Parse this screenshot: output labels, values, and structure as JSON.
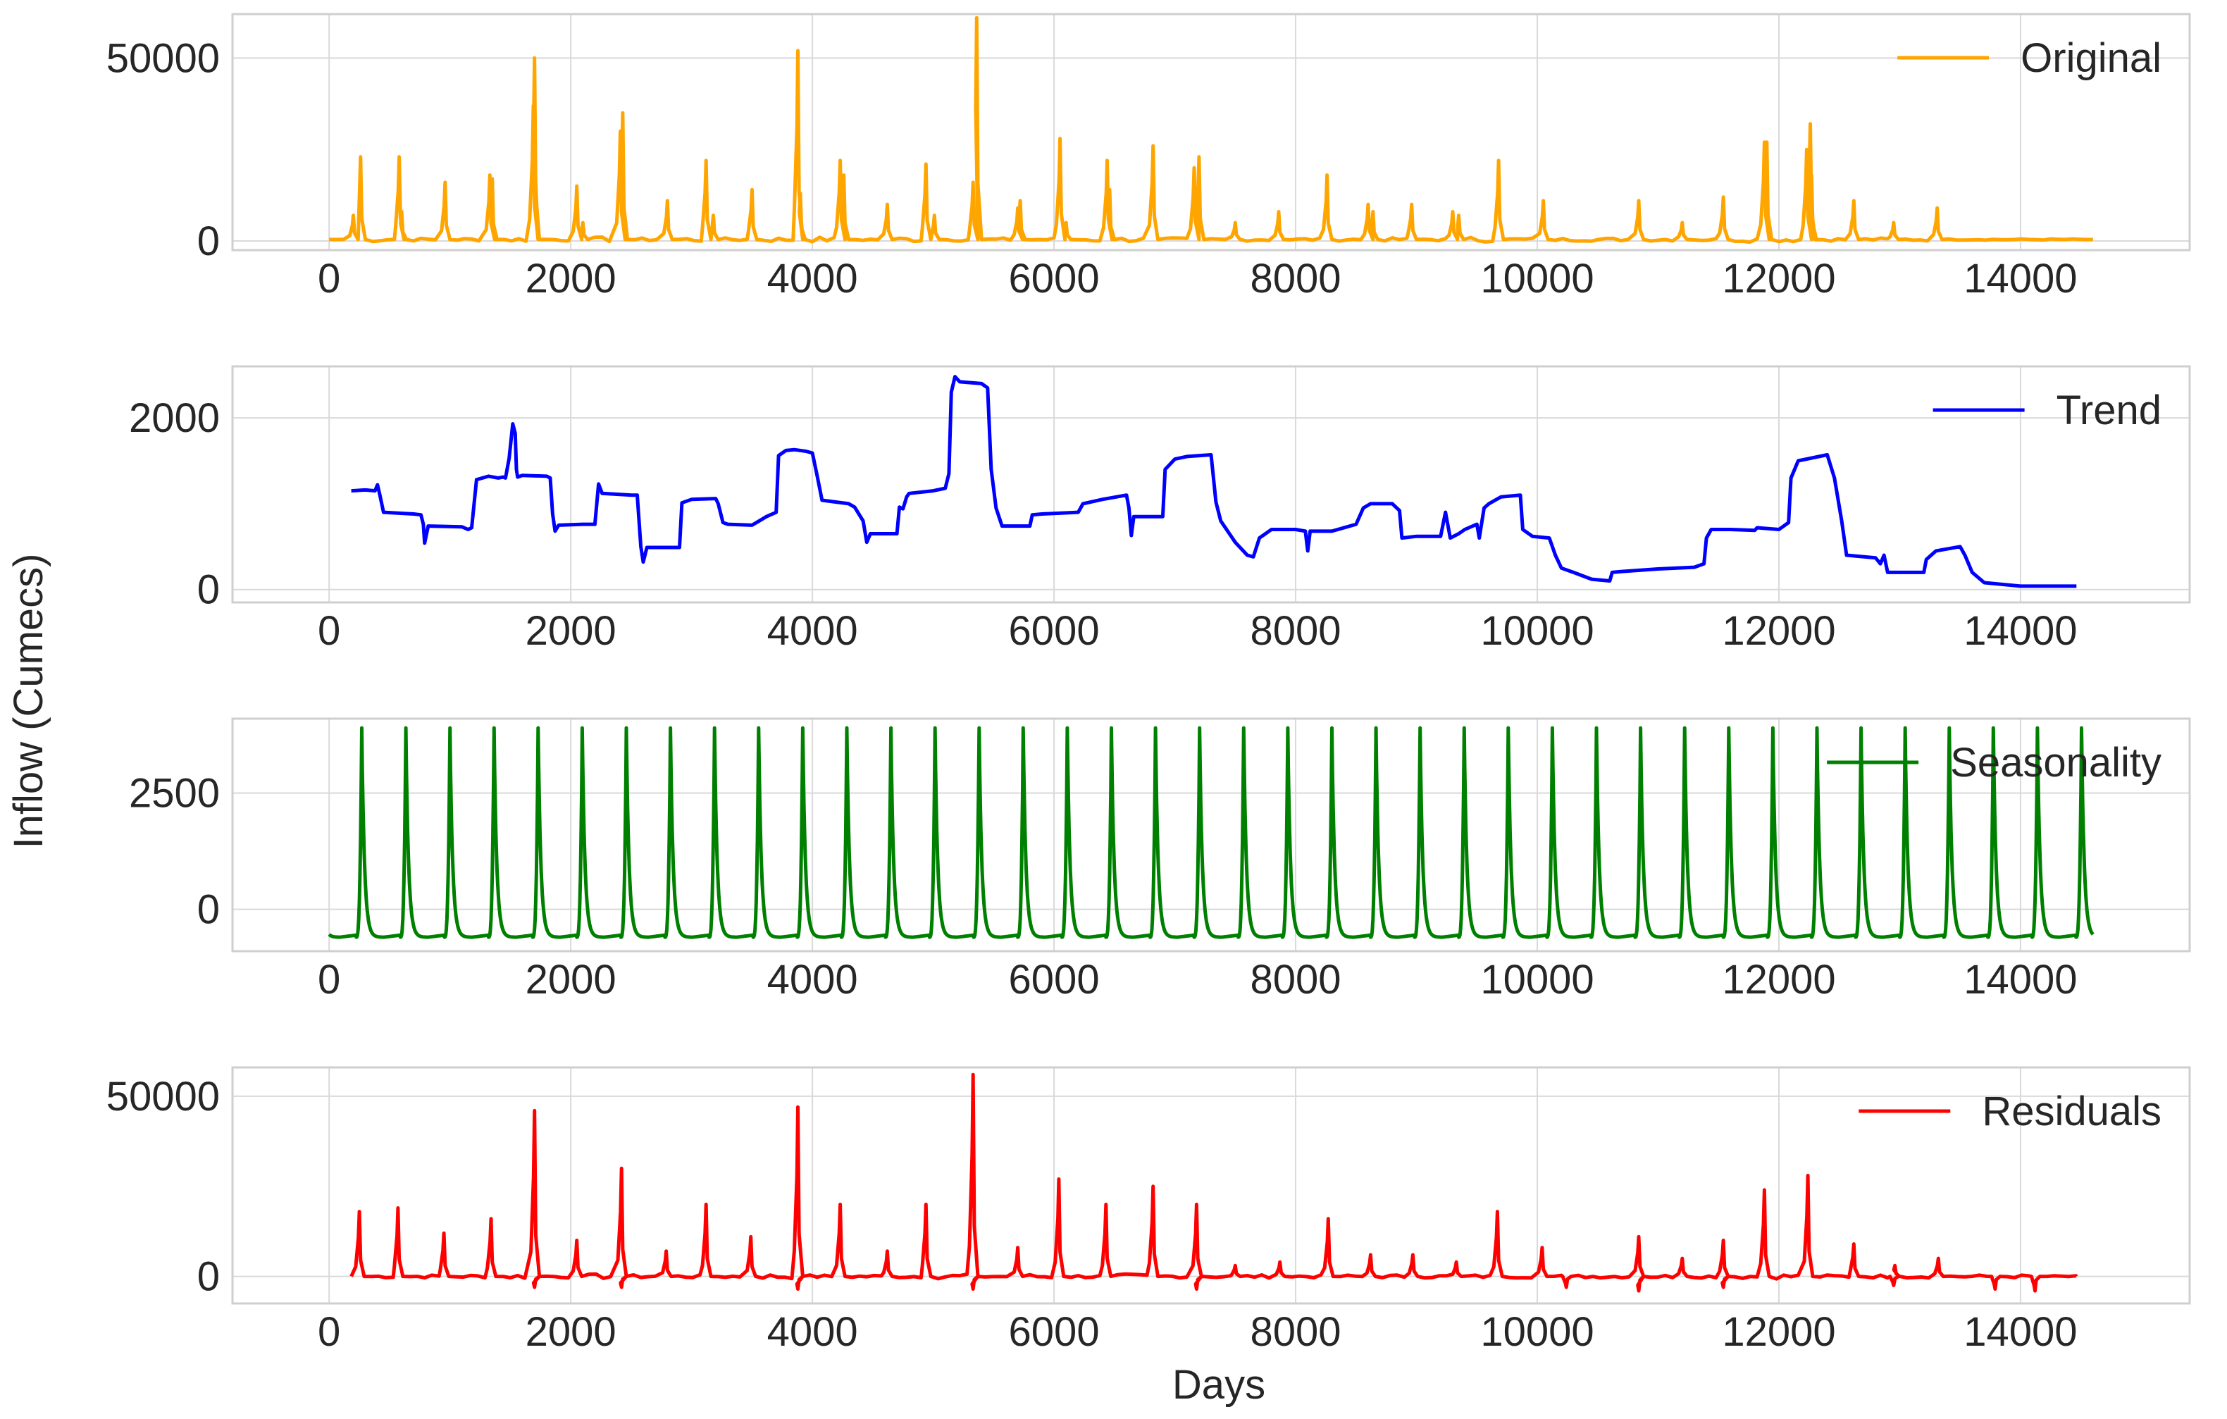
{
  "ylabel": "Inflow (Cumecs)",
  "chart_data": [
    {
      "type": "line",
      "series": [
        {
          "name": "Original",
          "color": "#FFA500"
        }
      ],
      "x_ticks": [
        0,
        2000,
        4000,
        6000,
        8000,
        10000,
        12000,
        14000
      ],
      "y_ticks": [
        0,
        50000
      ],
      "xlim": [
        -800,
        15400
      ],
      "ylim": [
        -2500,
        62000
      ],
      "legend": "top-right",
      "grid": true,
      "baseline": 400,
      "peaks": [
        [
          200,
          7000
        ],
        [
          260,
          23000
        ],
        [
          580,
          23000
        ],
        [
          600,
          8000
        ],
        [
          960,
          16000
        ],
        [
          1330,
          18000
        ],
        [
          1350,
          17000
        ],
        [
          1700,
          50000
        ],
        [
          1690,
          37000
        ],
        [
          2050,
          15000
        ],
        [
          2100,
          5000
        ],
        [
          2410,
          30000
        ],
        [
          2430,
          35000
        ],
        [
          2800,
          11000
        ],
        [
          3120,
          22000
        ],
        [
          3180,
          7000
        ],
        [
          3500,
          14000
        ],
        [
          3880,
          52000
        ],
        [
          3900,
          13000
        ],
        [
          4230,
          22000
        ],
        [
          4260,
          18000
        ],
        [
          4620,
          10000
        ],
        [
          4940,
          21000
        ],
        [
          5010,
          7000
        ],
        [
          5330,
          16000
        ],
        [
          5360,
          61000
        ],
        [
          5700,
          9000
        ],
        [
          5720,
          11000
        ],
        [
          6050,
          28000
        ],
        [
          6100,
          5000
        ],
        [
          6440,
          22000
        ],
        [
          6460,
          14000
        ],
        [
          6820,
          26000
        ],
        [
          7160,
          20000
        ],
        [
          7200,
          23000
        ],
        [
          7500,
          5000
        ],
        [
          7860,
          8000
        ],
        [
          8260,
          18000
        ],
        [
          8600,
          10000
        ],
        [
          8640,
          8000
        ],
        [
          8960,
          10000
        ],
        [
          9300,
          8000
        ],
        [
          9350,
          7000
        ],
        [
          9680,
          22000
        ],
        [
          10050,
          11000
        ],
        [
          10840,
          11000
        ],
        [
          11200,
          5000
        ],
        [
          11540,
          12000
        ],
        [
          11880,
          27000
        ],
        [
          11900,
          27000
        ],
        [
          12230,
          25000
        ],
        [
          12260,
          32000
        ],
        [
          12270,
          18000
        ],
        [
          12620,
          11000
        ],
        [
          12950,
          5000
        ],
        [
          13310,
          9000
        ]
      ]
    },
    {
      "type": "line",
      "series": [
        {
          "name": "Trend",
          "color": "#0000FF"
        }
      ],
      "x_ticks": [
        0,
        2000,
        4000,
        6000,
        8000,
        10000,
        12000,
        14000
      ],
      "y_ticks": [
        0,
        2000
      ],
      "xlim": [
        -800,
        15400
      ],
      "ylim": [
        -150,
        2600
      ],
      "legend": "top-right",
      "grid": true,
      "points": [
        [
          183,
          1150
        ],
        [
          300,
          1160
        ],
        [
          380,
          1150
        ],
        [
          400,
          1220
        ],
        [
          420,
          1100
        ],
        [
          450,
          900
        ],
        [
          700,
          880
        ],
        [
          760,
          870
        ],
        [
          780,
          760
        ],
        [
          790,
          540
        ],
        [
          820,
          740
        ],
        [
          1100,
          730
        ],
        [
          1150,
          700
        ],
        [
          1180,
          720
        ],
        [
          1220,
          1280
        ],
        [
          1320,
          1320
        ],
        [
          1400,
          1300
        ],
        [
          1440,
          1310
        ],
        [
          1460,
          1300
        ],
        [
          1490,
          1530
        ],
        [
          1520,
          1930
        ],
        [
          1540,
          1820
        ],
        [
          1550,
          1400
        ],
        [
          1560,
          1310
        ],
        [
          1600,
          1330
        ],
        [
          1800,
          1320
        ],
        [
          1830,
          1300
        ],
        [
          1850,
          880
        ],
        [
          1870,
          680
        ],
        [
          1900,
          750
        ],
        [
          2100,
          760
        ],
        [
          2200,
          760
        ],
        [
          2230,
          1230
        ],
        [
          2260,
          1120
        ],
        [
          2500,
          1100
        ],
        [
          2550,
          1100
        ],
        [
          2580,
          500
        ],
        [
          2600,
          320
        ],
        [
          2630,
          490
        ],
        [
          2900,
          490
        ],
        [
          2920,
          1010
        ],
        [
          3000,
          1050
        ],
        [
          3200,
          1060
        ],
        [
          3220,
          1000
        ],
        [
          3260,
          780
        ],
        [
          3300,
          760
        ],
        [
          3500,
          750
        ],
        [
          3560,
          800
        ],
        [
          3620,
          850
        ],
        [
          3700,
          900
        ],
        [
          3720,
          1560
        ],
        [
          3780,
          1620
        ],
        [
          3850,
          1630
        ],
        [
          3950,
          1610
        ],
        [
          4000,
          1590
        ],
        [
          4040,
          1320
        ],
        [
          4080,
          1040
        ],
        [
          4300,
          1000
        ],
        [
          4350,
          960
        ],
        [
          4420,
          800
        ],
        [
          4450,
          550
        ],
        [
          4480,
          650
        ],
        [
          4700,
          650
        ],
        [
          4720,
          960
        ],
        [
          4750,
          940
        ],
        [
          4780,
          1080
        ],
        [
          4800,
          1120
        ],
        [
          5000,
          1150
        ],
        [
          5100,
          1180
        ],
        [
          5130,
          1350
        ],
        [
          5150,
          2300
        ],
        [
          5180,
          2480
        ],
        [
          5220,
          2420
        ],
        [
          5400,
          2400
        ],
        [
          5450,
          2350
        ],
        [
          5480,
          1400
        ],
        [
          5520,
          950
        ],
        [
          5570,
          740
        ],
        [
          5800,
          740
        ],
        [
          5820,
          870
        ],
        [
          5900,
          880
        ],
        [
          6200,
          900
        ],
        [
          6240,
          1000
        ],
        [
          6400,
          1050
        ],
        [
          6600,
          1100
        ],
        [
          6620,
          950
        ],
        [
          6640,
          630
        ],
        [
          6660,
          850
        ],
        [
          6900,
          850
        ],
        [
          6920,
          1400
        ],
        [
          7000,
          1520
        ],
        [
          7100,
          1550
        ],
        [
          7300,
          1570
        ],
        [
          7340,
          1020
        ],
        [
          7380,
          800
        ],
        [
          7500,
          550
        ],
        [
          7600,
          400
        ],
        [
          7650,
          380
        ],
        [
          7700,
          600
        ],
        [
          7800,
          700
        ],
        [
          8000,
          700
        ],
        [
          8080,
          680
        ],
        [
          8100,
          450
        ],
        [
          8120,
          680
        ],
        [
          8300,
          680
        ],
        [
          8500,
          760
        ],
        [
          8560,
          950
        ],
        [
          8620,
          1000
        ],
        [
          8800,
          1000
        ],
        [
          8860,
          920
        ],
        [
          8880,
          600
        ],
        [
          9000,
          620
        ],
        [
          9200,
          620
        ],
        [
          9240,
          900
        ],
        [
          9280,
          600
        ],
        [
          9350,
          650
        ],
        [
          9400,
          700
        ],
        [
          9500,
          760
        ],
        [
          9520,
          600
        ],
        [
          9560,
          950
        ],
        [
          9600,
          1000
        ],
        [
          9700,
          1080
        ],
        [
          9860,
          1100
        ],
        [
          9880,
          700
        ],
        [
          9960,
          620
        ],
        [
          10100,
          600
        ],
        [
          10150,
          400
        ],
        [
          10200,
          250
        ],
        [
          10300,
          200
        ],
        [
          10450,
          120
        ],
        [
          10600,
          100
        ],
        [
          10620,
          200
        ],
        [
          10700,
          210
        ],
        [
          11000,
          240
        ],
        [
          11300,
          260
        ],
        [
          11380,
          300
        ],
        [
          11400,
          600
        ],
        [
          11440,
          700
        ],
        [
          11600,
          700
        ],
        [
          11800,
          690
        ],
        [
          11820,
          720
        ],
        [
          12000,
          700
        ],
        [
          12080,
          780
        ],
        [
          12100,
          1300
        ],
        [
          12160,
          1500
        ],
        [
          12400,
          1570
        ],
        [
          12460,
          1300
        ],
        [
          12520,
          800
        ],
        [
          12560,
          400
        ],
        [
          12800,
          370
        ],
        [
          12840,
          300
        ],
        [
          12870,
          400
        ],
        [
          12900,
          200
        ],
        [
          13200,
          200
        ],
        [
          13220,
          350
        ],
        [
          13300,
          450
        ],
        [
          13500,
          500
        ],
        [
          13540,
          400
        ],
        [
          13600,
          200
        ],
        [
          13700,
          80
        ],
        [
          14000,
          40
        ],
        [
          14463,
          40
        ]
      ]
    },
    {
      "type": "line",
      "series": [
        {
          "name": "Seasonality",
          "color": "#008000"
        }
      ],
      "x_ticks": [
        0,
        2000,
        4000,
        6000,
        8000,
        10000,
        12000,
        14000
      ],
      "y_ticks": [
        0,
        2500
      ],
      "xlim": [
        -800,
        15400
      ],
      "ylim": [
        -900,
        4100
      ],
      "legend": "top-right",
      "grid": true,
      "period_days": 365,
      "first_peak_day": 270,
      "min_value": -600,
      "peak_value": 3900
    },
    {
      "type": "line",
      "series": [
        {
          "name": "Residuals",
          "color": "#FF0000"
        }
      ],
      "x_ticks": [
        0,
        2000,
        4000,
        6000,
        8000,
        10000,
        12000,
        14000
      ],
      "y_ticks": [
        0,
        50000
      ],
      "xlim": [
        -800,
        15400
      ],
      "ylim": [
        -7500,
        58000
      ],
      "legend": "top-right",
      "grid": true,
      "baseline": 0,
      "peaks": [
        [
          250,
          18000
        ],
        [
          570,
          19000
        ],
        [
          950,
          12000
        ],
        [
          1340,
          16000
        ],
        [
          1700,
          46000
        ],
        [
          2050,
          10000
        ],
        [
          2420,
          30000
        ],
        [
          2790,
          7000
        ],
        [
          3120,
          20000
        ],
        [
          3490,
          11000
        ],
        [
          3880,
          47000
        ],
        [
          4230,
          20000
        ],
        [
          4620,
          7000
        ],
        [
          4940,
          20000
        ],
        [
          5330,
          56000
        ],
        [
          5700,
          8000
        ],
        [
          6040,
          27000
        ],
        [
          6430,
          20000
        ],
        [
          6820,
          25000
        ],
        [
          7180,
          20000
        ],
        [
          7500,
          3000
        ],
        [
          7870,
          4000
        ],
        [
          8270,
          16000
        ],
        [
          8620,
          6000
        ],
        [
          8970,
          6000
        ],
        [
          9330,
          4000
        ],
        [
          9670,
          18000
        ],
        [
          10040,
          8000
        ],
        [
          10840,
          11000
        ],
        [
          11200,
          5000
        ],
        [
          11540,
          10000
        ],
        [
          11880,
          24000
        ],
        [
          12240,
          28000
        ],
        [
          12620,
          9000
        ],
        [
          12960,
          3000
        ],
        [
          13320,
          5000
        ]
      ],
      "dips": [
        [
          1700,
          -3000
        ],
        [
          2420,
          -3000
        ],
        [
          3880,
          -3500
        ],
        [
          5330,
          -3500
        ],
        [
          7180,
          -3500
        ],
        [
          10240,
          -3000
        ],
        [
          10840,
          -4000
        ],
        [
          11540,
          -3000
        ],
        [
          12950,
          -2500
        ],
        [
          13790,
          -3500
        ],
        [
          14120,
          -4000
        ]
      ]
    }
  ]
}
